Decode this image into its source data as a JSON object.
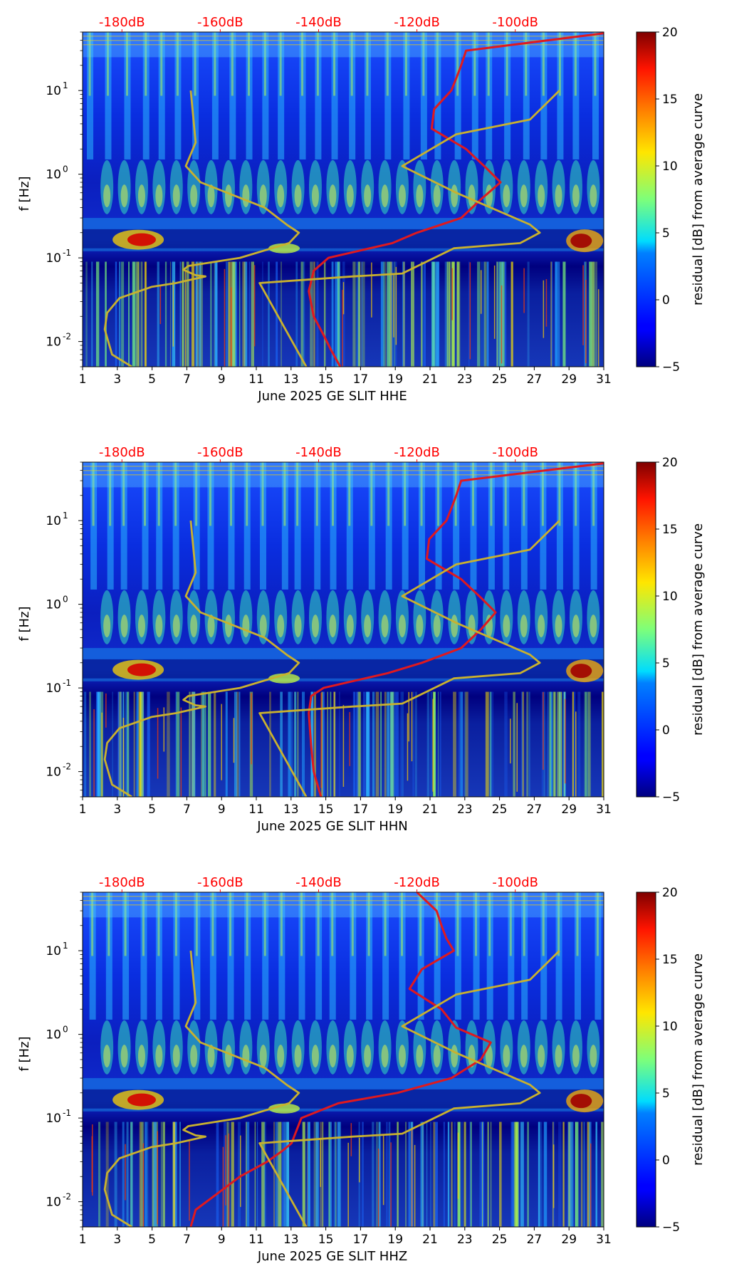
{
  "chart_data": [
    {
      "type": "heatmap",
      "title": "",
      "xlabel": "June 2025 GE SLIT  HHE",
      "ylabel": "f [Hz]",
      "x_ticks": [
        "1",
        "3",
        "5",
        "7",
        "9",
        "11",
        "13",
        "15",
        "17",
        "19",
        "21",
        "23",
        "25",
        "27",
        "29",
        "31"
      ],
      "y_ticks": [
        {
          "exp": "-2",
          "v": 0.01
        },
        {
          "exp": "-1",
          "v": 0.1
        },
        {
          "exp": "0",
          "v": 1
        },
        {
          "exp": "1",
          "v": 10
        }
      ],
      "top_ticks": [
        "-180dB",
        "-160dB",
        "-140dB",
        "-120dB",
        "-100dB"
      ],
      "colorbar_label": "residual [dB] from average curve",
      "colorbar_ticks": [
        "−5",
        "0",
        "5",
        "10",
        "15",
        "20"
      ],
      "clim": [
        -5,
        20
      ],
      "xlim": [
        1,
        31
      ],
      "ylim_hz": [
        0.005,
        50
      ],
      "top_db_range": [
        -188,
        -82
      ],
      "colormap": "jet",
      "series": [
        {
          "name": "PSD curve",
          "color": "#e0191e",
          "points": [
            [
              0.005,
              -135.6
            ],
            [
              0.008,
              -137.5
            ],
            [
              0.012,
              -139.0
            ],
            [
              0.02,
              -141.0
            ],
            [
              0.04,
              -142.0
            ],
            [
              0.07,
              -141.0
            ],
            [
              0.1,
              -138.0
            ],
            [
              0.15,
              -125.0
            ],
            [
              0.2,
              -120.0
            ],
            [
              0.3,
              -111.0
            ],
            [
              0.5,
              -107.0
            ],
            [
              0.8,
              -103.0
            ],
            [
              1.2,
              -106.0
            ],
            [
              2,
              -110.0
            ],
            [
              3.5,
              -117.0
            ],
            [
              6,
              -116.5
            ],
            [
              10,
              -113.0
            ],
            [
              14,
              -112.0
            ],
            [
              20,
              -111.0
            ],
            [
              30,
              -110.0
            ],
            [
              50,
              -80.0
            ]
          ]
        },
        {
          "name": "Noise model",
          "color": "#c9b12e",
          "points": [
            [
              0.005,
              -178.0
            ],
            [
              0.007,
              -182.0
            ],
            [
              0.014,
              -183.5
            ],
            [
              0.022,
              -183.0
            ],
            [
              0.033,
              -180.5
            ],
            [
              0.045,
              -174.0
            ],
            [
              0.05,
              -169.0
            ],
            [
              0.06,
              -163.0
            ],
            [
              0.062,
              -165.0
            ],
            [
              0.072,
              -167.5
            ],
            [
              0.08,
              -166.5
            ],
            [
              0.1,
              -156.0
            ],
            [
              0.15,
              -146.0
            ],
            [
              0.2,
              -144.0
            ],
            [
              0.25,
              -146.5
            ],
            [
              0.4,
              -151.0
            ],
            [
              0.8,
              -164.0
            ],
            [
              1.25,
              -167.0
            ],
            [
              2.4,
              -165.0
            ],
            [
              10,
              -166.0
            ],
            [
              10,
              -166.0
            ]
          ]
        },
        {
          "name": "Noise model (high)",
          "color": "#c9b12e",
          "points": [
            [
              0.005,
              -142.5
            ],
            [
              0.05,
              -152.0
            ],
            [
              0.06,
              -133.0
            ],
            [
              0.065,
              -123.0
            ],
            [
              0.13,
              -112.5
            ],
            [
              0.15,
              -99.0
            ],
            [
              0.2,
              -95.0
            ],
            [
              0.25,
              -97.0
            ],
            [
              0.6,
              -112.0
            ],
            [
              1.25,
              -123.0
            ],
            [
              3,
              -112.0
            ],
            [
              4.5,
              -97.0
            ],
            [
              10,
              -91.0
            ]
          ]
        }
      ]
    },
    {
      "type": "heatmap",
      "title": "",
      "xlabel": "June 2025 GE SLIT  HHN",
      "ylabel": "f [Hz]",
      "x_ticks": [
        "1",
        "3",
        "5",
        "7",
        "9",
        "11",
        "13",
        "15",
        "17",
        "19",
        "21",
        "23",
        "25",
        "27",
        "29",
        "31"
      ],
      "y_ticks": [
        {
          "exp": "-2",
          "v": 0.01
        },
        {
          "exp": "-1",
          "v": 0.1
        },
        {
          "exp": "0",
          "v": 1
        },
        {
          "exp": "1",
          "v": 10
        }
      ],
      "top_ticks": [
        "-180dB",
        "-160dB",
        "-140dB",
        "-120dB",
        "-100dB"
      ],
      "colorbar_label": "residual [dB] from average curve",
      "colorbar_ticks": [
        "−5",
        "0",
        "5",
        "10",
        "15",
        "20"
      ],
      "clim": [
        -5,
        20
      ],
      "xlim": [
        1,
        31
      ],
      "ylim_hz": [
        0.005,
        50
      ],
      "top_db_range": [
        -188,
        -82
      ],
      "colormap": "jet",
      "series": [
        {
          "name": "PSD curve",
          "color": "#e0191e",
          "points": [
            [
              0.005,
              -139.5
            ],
            [
              0.01,
              -141.0
            ],
            [
              0.02,
              -141.5
            ],
            [
              0.05,
              -142.0
            ],
            [
              0.08,
              -141.5
            ],
            [
              0.1,
              -139.0
            ],
            [
              0.15,
              -126.0
            ],
            [
              0.2,
              -119.0
            ],
            [
              0.3,
              -111.0
            ],
            [
              0.5,
              -107.0
            ],
            [
              0.8,
              -104.0
            ],
            [
              1.2,
              -107.0
            ],
            [
              2,
              -111.0
            ],
            [
              3.5,
              -118.0
            ],
            [
              6,
              -117.5
            ],
            [
              10,
              -114.0
            ],
            [
              14,
              -113.0
            ],
            [
              20,
              -112.0
            ],
            [
              30,
              -111.0
            ],
            [
              50,
              -80.0
            ]
          ]
        },
        {
          "name": "Noise model",
          "color": "#c9b12e",
          "points": [
            [
              0.005,
              -178.0
            ],
            [
              0.007,
              -182.0
            ],
            [
              0.014,
              -183.5
            ],
            [
              0.022,
              -183.0
            ],
            [
              0.033,
              -180.5
            ],
            [
              0.045,
              -174.0
            ],
            [
              0.05,
              -169.0
            ],
            [
              0.06,
              -163.0
            ],
            [
              0.062,
              -165.0
            ],
            [
              0.072,
              -167.5
            ],
            [
              0.08,
              -166.5
            ],
            [
              0.1,
              -156.0
            ],
            [
              0.15,
              -146.0
            ],
            [
              0.2,
              -144.0
            ],
            [
              0.25,
              -146.5
            ],
            [
              0.4,
              -151.0
            ],
            [
              0.8,
              -164.0
            ],
            [
              1.25,
              -167.0
            ],
            [
              2.4,
              -165.0
            ],
            [
              10,
              -166.0
            ],
            [
              10,
              -166.0
            ]
          ]
        },
        {
          "name": "Noise model (high)",
          "color": "#c9b12e",
          "points": [
            [
              0.005,
              -142.5
            ],
            [
              0.05,
              -152.0
            ],
            [
              0.06,
              -133.0
            ],
            [
              0.065,
              -123.0
            ],
            [
              0.13,
              -112.5
            ],
            [
              0.15,
              -99.0
            ],
            [
              0.2,
              -95.0
            ],
            [
              0.25,
              -97.0
            ],
            [
              0.6,
              -112.0
            ],
            [
              1.25,
              -123.0
            ],
            [
              3,
              -112.0
            ],
            [
              4.5,
              -97.0
            ],
            [
              10,
              -91.0
            ]
          ]
        }
      ]
    },
    {
      "type": "heatmap",
      "title": "",
      "xlabel": "June 2025 GE SLIT  HHZ",
      "ylabel": "f [Hz]",
      "x_ticks": [
        "1",
        "3",
        "5",
        "7",
        "9",
        "11",
        "13",
        "15",
        "17",
        "19",
        "21",
        "23",
        "25",
        "27",
        "29",
        "31"
      ],
      "y_ticks": [
        {
          "exp": "-2",
          "v": 0.01
        },
        {
          "exp": "-1",
          "v": 0.1
        },
        {
          "exp": "0",
          "v": 1
        },
        {
          "exp": "1",
          "v": 10
        }
      ],
      "top_ticks": [
        "-180dB",
        "-160dB",
        "-140dB",
        "-120dB",
        "-100dB"
      ],
      "colorbar_label": "residual [dB] from average curve",
      "colorbar_ticks": [
        "−5",
        "0",
        "5",
        "10",
        "15",
        "20"
      ],
      "clim": [
        -5,
        20
      ],
      "xlim": [
        1,
        31
      ],
      "ylim_hz": [
        0.005,
        50
      ],
      "top_db_range": [
        -188,
        -82
      ],
      "colormap": "jet",
      "series": [
        {
          "name": "PSD curve",
          "color": "#e0191e",
          "points": [
            [
              0.005,
              -166.0
            ],
            [
              0.008,
              -165.0
            ],
            [
              0.012,
              -161.0
            ],
            [
              0.02,
              -156.0
            ],
            [
              0.03,
              -150.5
            ],
            [
              0.04,
              -147.5
            ],
            [
              0.05,
              -145.5
            ],
            [
              0.1,
              -143.5
            ],
            [
              0.15,
              -136.0
            ],
            [
              0.2,
              -124.0
            ],
            [
              0.3,
              -113.0
            ],
            [
              0.5,
              -107.0
            ],
            [
              0.8,
              -105.0
            ],
            [
              1.2,
              -112.0
            ],
            [
              2,
              -115.0
            ],
            [
              3.5,
              -121.5
            ],
            [
              6,
              -119.0
            ],
            [
              10,
              -112.5
            ],
            [
              14,
              -114.0
            ],
            [
              20,
              -115.0
            ],
            [
              30,
              -116.0
            ],
            [
              50,
              -120.0
            ]
          ]
        },
        {
          "name": "Noise model",
          "color": "#c9b12e",
          "points": [
            [
              0.005,
              -178.0
            ],
            [
              0.007,
              -182.0
            ],
            [
              0.014,
              -183.5
            ],
            [
              0.022,
              -183.0
            ],
            [
              0.033,
              -180.5
            ],
            [
              0.045,
              -174.0
            ],
            [
              0.05,
              -169.0
            ],
            [
              0.06,
              -163.0
            ],
            [
              0.062,
              -165.0
            ],
            [
              0.072,
              -167.5
            ],
            [
              0.08,
              -166.5
            ],
            [
              0.1,
              -156.0
            ],
            [
              0.15,
              -146.0
            ],
            [
              0.2,
              -144.0
            ],
            [
              0.25,
              -146.5
            ],
            [
              0.4,
              -151.0
            ],
            [
              0.8,
              -164.0
            ],
            [
              1.25,
              -167.0
            ],
            [
              2.4,
              -165.0
            ],
            [
              10,
              -166.0
            ],
            [
              10,
              -166.0
            ]
          ]
        },
        {
          "name": "Noise model (high)",
          "color": "#c9b12e",
          "points": [
            [
              0.005,
              -142.5
            ],
            [
              0.05,
              -152.0
            ],
            [
              0.06,
              -133.0
            ],
            [
              0.065,
              -123.0
            ],
            [
              0.13,
              -112.5
            ],
            [
              0.15,
              -99.0
            ],
            [
              0.2,
              -95.0
            ],
            [
              0.25,
              -97.0
            ],
            [
              0.6,
              -112.0
            ],
            [
              1.25,
              -123.0
            ],
            [
              3,
              -112.0
            ],
            [
              4.5,
              -97.0
            ],
            [
              10,
              -91.0
            ]
          ]
        }
      ]
    }
  ],
  "colors": {
    "top_tick_text": "#ff0000",
    "axis": "#000000"
  }
}
